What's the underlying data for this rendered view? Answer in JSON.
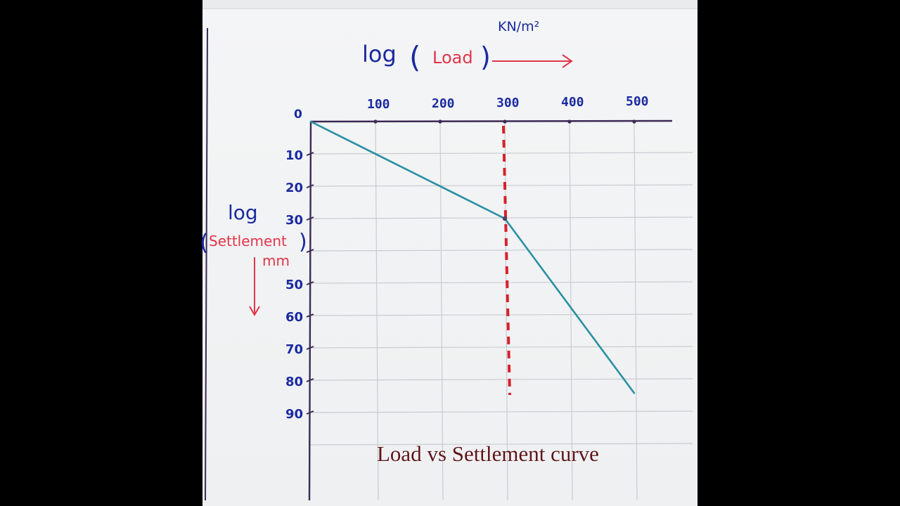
{
  "chart_data": {
    "type": "line",
    "title": "Load vs Settlement curve",
    "xlabel": {
      "prefix": "log",
      "name": "Load",
      "unit": "KN/m²"
    },
    "ylabel": {
      "prefix": "log",
      "name": "Settlement",
      "unit": "mm"
    },
    "origin_label": "0",
    "x_ticks": [
      "100",
      "200",
      "300",
      "400",
      "500"
    ],
    "y_ticks": [
      "10",
      "20",
      "30",
      "50",
      "60",
      "70",
      "80",
      "90"
    ],
    "xlim": [
      0,
      500
    ],
    "ylim": [
      0,
      90
    ],
    "y_inverted": true,
    "grid": true,
    "series": [
      {
        "x": [
          0,
          300,
          500
        ],
        "y": [
          0,
          30,
          84
        ],
        "color": "#2a8fa4"
      }
    ],
    "reference_line": {
      "x": 300,
      "style": "dashed",
      "color": "#d8202c"
    }
  },
  "colors": {
    "ink_blue": "#1b2aa0",
    "ink_red": "#e2354a",
    "axis": "#3a2a55",
    "grid": "#c9ccd0"
  }
}
